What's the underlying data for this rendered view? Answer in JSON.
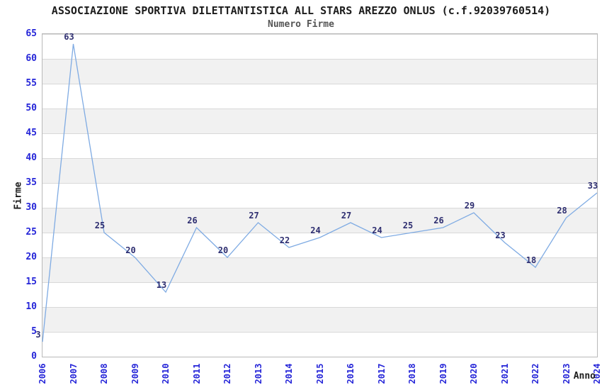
{
  "header": {
    "title": "ASSOCIAZIONE SPORTIVA DILETTANTISTICA ALL STARS AREZZO ONLUS (c.f.92039760514)",
    "subtitle": "Numero Firme"
  },
  "chart_data": {
    "type": "line",
    "title": "ASSOCIAZIONE SPORTIVA DILETTANTISTICA ALL STARS AREZZO ONLUS (c.f.92039760514)",
    "subtitle": "Numero Firme",
    "xlabel": "Anno",
    "ylabel": "Firme",
    "categories": [
      "2006",
      "2007",
      "2008",
      "2009",
      "2010",
      "2011",
      "2012",
      "2013",
      "2014",
      "2015",
      "2016",
      "2017",
      "2018",
      "2019",
      "2020",
      "2021",
      "2022",
      "2023",
      "2024"
    ],
    "values": [
      3,
      63,
      25,
      20,
      13,
      26,
      20,
      27,
      22,
      24,
      27,
      24,
      25,
      26,
      29,
      23,
      18,
      28,
      33
    ],
    "ylim": [
      0,
      65
    ],
    "ytick_step": 5,
    "legend_position": "none",
    "grid": "horizontal-bands",
    "colors": {
      "line": "#7fabe3",
      "tick_labels": "#2525d8",
      "point_labels": "#2e2e70",
      "band_gray": "#f1f1f1",
      "gridline": "#d9d9d9",
      "plot_border": "#b9b9b9"
    }
  }
}
